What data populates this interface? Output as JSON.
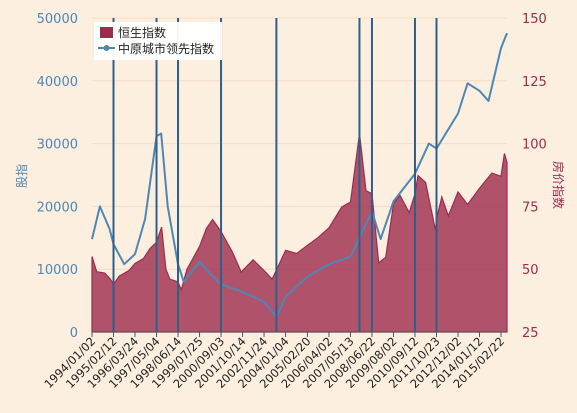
{
  "chart_data": {
    "type": "area",
    "title": "",
    "y_left_label": "股指",
    "y_right_label": "房价指数",
    "y_left_range": [
      0,
      50000
    ],
    "y_right_range": [
      25,
      150
    ],
    "y_left_ticks": [
      "0",
      "10000",
      "20000",
      "30000",
      "40000",
      "50000"
    ],
    "y_right_ticks": [
      "25",
      "50",
      "75",
      "100",
      "125",
      "150"
    ],
    "x_range": [
      "1994-01-02",
      "2015-06-15"
    ],
    "x_tick_labels": [
      "1994/01/02",
      "1995/02/12",
      "1996/03/24",
      "1997/05/04",
      "1998/06/14",
      "1999/07/25",
      "2000/09/03",
      "2001/10/14",
      "2002/11/24",
      "2004/01/04",
      "2005/02/20",
      "2006/04/02",
      "2007/05/13",
      "2008/06/22",
      "2009/08/02",
      "2010/09/12",
      "2011/10/23",
      "2012/12/02",
      "2014/01/12",
      "2015/02/22"
    ],
    "x_tick_dates": [
      "1994-01-02",
      "1995-02-12",
      "1996-03-24",
      "1997-05-04",
      "1998-06-14",
      "1999-07-25",
      "2000-09-03",
      "2001-10-14",
      "2002-11-24",
      "2004-01-04",
      "2005-02-20",
      "2006-04-02",
      "2007-05-13",
      "2008-06-22",
      "2009-08-02",
      "2010-09-12",
      "2011-10-23",
      "2012-12-02",
      "2014-01-12",
      "2015-02-22"
    ],
    "legend_position": "top-left",
    "series": [
      {
        "name": "恒生指数",
        "axis": "left",
        "type": "area",
        "color": "#9e2b4e",
        "points": [
          [
            "1994-01-02",
            12000
          ],
          [
            "1994-04-01",
            9600
          ],
          [
            "1994-09-01",
            9400
          ],
          [
            "1994-12-15",
            8400
          ],
          [
            "1995-02-12",
            7600
          ],
          [
            "1995-06-01",
            8900
          ],
          [
            "1995-12-01",
            9800
          ],
          [
            "1996-03-24",
            10900
          ],
          [
            "1996-09-01",
            11700
          ],
          [
            "1997-01-01",
            13300
          ],
          [
            "1997-05-04",
            14300
          ],
          [
            "1997-08-07",
            16700
          ],
          [
            "1997-10-28",
            10000
          ],
          [
            "1998-01-12",
            8400
          ],
          [
            "1998-06-14",
            8000
          ],
          [
            "1998-08-13",
            6700
          ],
          [
            "1998-12-01",
            10000
          ],
          [
            "1999-07-25",
            13600
          ],
          [
            "1999-12-01",
            16500
          ],
          [
            "2000-03-28",
            17900
          ],
          [
            "2000-09-03",
            16000
          ],
          [
            "2001-04-01",
            12800
          ],
          [
            "2001-09-21",
            9500
          ],
          [
            "2001-10-14",
            9800
          ],
          [
            "2002-05-01",
            11500
          ],
          [
            "2002-11-24",
            9800
          ],
          [
            "2003-04-25",
            8400
          ],
          [
            "2004-01-04",
            13000
          ],
          [
            "2004-08-01",
            12500
          ],
          [
            "2005-02-20",
            13800
          ],
          [
            "2005-09-01",
            15000
          ],
          [
            "2006-04-02",
            16600
          ],
          [
            "2006-12-01",
            19900
          ],
          [
            "2007-05-13",
            20700
          ],
          [
            "2007-10-30",
            31600
          ],
          [
            "2008-03-01",
            22500
          ],
          [
            "2008-06-22",
            22000
          ],
          [
            "2008-10-27",
            11000
          ],
          [
            "2009-03-09",
            11900
          ],
          [
            "2009-08-02",
            20400
          ],
          [
            "2009-12-01",
            21800
          ],
          [
            "2010-05-25",
            19000
          ],
          [
            "2010-09-12",
            22000
          ],
          [
            "2010-11-08",
            24900
          ],
          [
            "2011-04-01",
            23800
          ],
          [
            "2011-10-04",
            16200
          ],
          [
            "2011-10-23",
            18000
          ],
          [
            "2012-02-01",
            21500
          ],
          [
            "2012-06-01",
            18500
          ],
          [
            "2012-12-02",
            22300
          ],
          [
            "2013-06-01",
            20300
          ],
          [
            "2014-01-12",
            22900
          ],
          [
            "2014-09-03",
            25300
          ],
          [
            "2015-02-22",
            24800
          ],
          [
            "2015-04-27",
            28400
          ],
          [
            "2015-06-15",
            27000
          ]
        ]
      },
      {
        "name": "中原城市领先指数",
        "axis": "right",
        "type": "line",
        "color": "#4f87b4",
        "points": [
          [
            "1994-01-02",
            62
          ],
          [
            "1994-06-01",
            75
          ],
          [
            "1994-12-01",
            66
          ],
          [
            "1995-02-12",
            60
          ],
          [
            "1995-09-01",
            52
          ],
          [
            "1996-03-24",
            56
          ],
          [
            "1996-10-01",
            70
          ],
          [
            "1997-05-04",
            103
          ],
          [
            "1997-08-01",
            104
          ],
          [
            "1997-12-01",
            75
          ],
          [
            "1998-06-14",
            52
          ],
          [
            "1998-10-01",
            45
          ],
          [
            "1999-07-25",
            53
          ],
          [
            "2000-01-01",
            49
          ],
          [
            "2000-09-03",
            44
          ],
          [
            "2001-10-14",
            41
          ],
          [
            "2002-11-24",
            37
          ],
          [
            "2003-07-15",
            31
          ],
          [
            "2004-01-04",
            39
          ],
          [
            "2005-02-20",
            47
          ],
          [
            "2006-04-02",
            52
          ],
          [
            "2007-05-13",
            55
          ],
          [
            "2008-06-22",
            73
          ],
          [
            "2008-12-01",
            62
          ],
          [
            "2009-08-02",
            77
          ],
          [
            "2010-09-12",
            88
          ],
          [
            "2011-06-01",
            100
          ],
          [
            "2011-10-23",
            98
          ],
          [
            "2012-12-02",
            112
          ],
          [
            "2013-06-01",
            124
          ],
          [
            "2014-01-12",
            121
          ],
          [
            "2014-07-01",
            117
          ],
          [
            "2015-02-22",
            138
          ],
          [
            "2015-06-15",
            144
          ]
        ]
      }
    ],
    "vertical_markers": [
      "1995-02-12",
      "1997-05-04",
      "1998-06-14",
      "2000-09-03",
      "2003-07-15",
      "2007-10-30",
      "2008-06-22",
      "2010-09-12",
      "2011-10-23"
    ]
  },
  "legend": {
    "items": [
      {
        "label": "恒生指数",
        "color": "#9e2b4e"
      },
      {
        "label": "中原城市领先指数",
        "color": "#4f87b4"
      }
    ]
  }
}
